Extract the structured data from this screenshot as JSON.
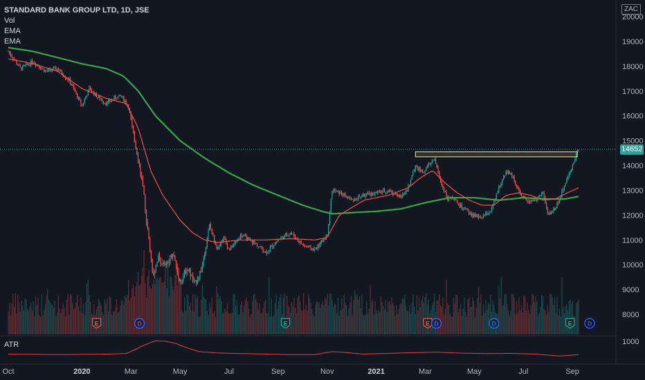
{
  "legend": {
    "title": "STANDARD BANK GROUP LTD, 1D, JSE",
    "vol": "Vol",
    "ema1": "EMA",
    "ema2": "EMA"
  },
  "currency": "ZAC",
  "last_price_label": "14652",
  "atr_label": "ATR",
  "colors": {
    "background": "#131722",
    "up": "#26a69a",
    "down": "#ef5350",
    "ema_fast": "#f05348",
    "ema_slow": "#3aa548",
    "atr": "#e84040",
    "earnings": "#ef5350",
    "dividend": "#2962ff"
  },
  "chart_data": {
    "type": "candlestick",
    "x_ticks": [
      {
        "label": "Oct",
        "bold": false,
        "t": 0.0
      },
      {
        "label": "2020",
        "bold": true,
        "t": 3.0
      },
      {
        "label": "Mar",
        "bold": false,
        "t": 5.0
      },
      {
        "label": "May",
        "bold": false,
        "t": 7.0
      },
      {
        "label": "Jul",
        "bold": false,
        "t": 9.0
      },
      {
        "label": "Sep",
        "bold": false,
        "t": 11.0
      },
      {
        "label": "Nov",
        "bold": false,
        "t": 13.0
      },
      {
        "label": "2021",
        "bold": true,
        "t": 15.0
      },
      {
        "label": "Mar",
        "bold": false,
        "t": 17.0
      },
      {
        "label": "May",
        "bold": false,
        "t": 19.0
      },
      {
        "label": "Jul",
        "bold": false,
        "t": 21.0
      },
      {
        "label": "Sep",
        "bold": false,
        "t": 23.0
      }
    ],
    "price_axis": {
      "ylim": [
        7600,
        20400
      ],
      "ticks": [
        8000,
        9000,
        10000,
        11000,
        12000,
        13000,
        14000,
        15000,
        16000,
        17000,
        18000,
        19000,
        20000
      ]
    },
    "atr_axis": {
      "ticks": [
        1000
      ]
    },
    "last_price": 14652,
    "resistance_box": {
      "t_start": 16.6,
      "t_end": 23.2,
      "y_low": 14350,
      "y_high": 14550
    },
    "price_path": [
      [
        0.0,
        18600
      ],
      [
        0.5,
        17900
      ],
      [
        1.0,
        18200
      ],
      [
        1.5,
        17800
      ],
      [
        2.0,
        17900
      ],
      [
        2.5,
        17400
      ],
      [
        3.0,
        16400
      ],
      [
        3.3,
        17100
      ],
      [
        3.7,
        16700
      ],
      [
        4.0,
        16500
      ],
      [
        4.3,
        16700
      ],
      [
        4.6,
        16800
      ],
      [
        4.9,
        16400
      ],
      [
        5.1,
        15200
      ],
      [
        5.3,
        14300
      ],
      [
        5.5,
        13000
      ],
      [
        5.7,
        11200
      ],
      [
        5.9,
        9600
      ],
      [
        6.1,
        10300
      ],
      [
        6.4,
        9900
      ],
      [
        6.7,
        10500
      ],
      [
        7.0,
        9300
      ],
      [
        7.3,
        9900
      ],
      [
        7.6,
        9200
      ],
      [
        7.9,
        9900
      ],
      [
        8.2,
        11600
      ],
      [
        8.5,
        10700
      ],
      [
        8.8,
        11100
      ],
      [
        9.0,
        10600
      ],
      [
        9.5,
        11200
      ],
      [
        10.0,
        10900
      ],
      [
        10.5,
        10500
      ],
      [
        11.0,
        11000
      ],
      [
        11.5,
        11300
      ],
      [
        12.0,
        10800
      ],
      [
        12.5,
        10600
      ],
      [
        13.0,
        11200
      ],
      [
        13.2,
        13000
      ],
      [
        13.5,
        12900
      ],
      [
        14.0,
        12600
      ],
      [
        14.5,
        12800
      ],
      [
        15.0,
        12900
      ],
      [
        15.5,
        13000
      ],
      [
        16.0,
        12700
      ],
      [
        16.3,
        13100
      ],
      [
        16.6,
        14000
      ],
      [
        16.9,
        13700
      ],
      [
        17.2,
        14100
      ],
      [
        17.4,
        14200
      ],
      [
        17.6,
        13400
      ],
      [
        17.9,
        12700
      ],
      [
        18.2,
        12600
      ],
      [
        18.5,
        12300
      ],
      [
        18.9,
        12000
      ],
      [
        19.3,
        11900
      ],
      [
        19.7,
        12200
      ],
      [
        20.0,
        13100
      ],
      [
        20.3,
        13800
      ],
      [
        20.6,
        13500
      ],
      [
        20.9,
        12700
      ],
      [
        21.2,
        12600
      ],
      [
        21.5,
        12600
      ],
      [
        21.8,
        12900
      ],
      [
        22.0,
        12000
      ],
      [
        22.3,
        12300
      ],
      [
        22.5,
        12700
      ],
      [
        22.7,
        13300
      ],
      [
        22.9,
        13700
      ],
      [
        23.1,
        14300
      ],
      [
        23.25,
        14652
      ]
    ],
    "ema_fast_path": [
      [
        0.0,
        18300
      ],
      [
        1.0,
        18100
      ],
      [
        2.0,
        17800
      ],
      [
        3.0,
        17100
      ],
      [
        4.0,
        16700
      ],
      [
        4.8,
        16500
      ],
      [
        5.3,
        15500
      ],
      [
        5.8,
        13800
      ],
      [
        6.3,
        12800
      ],
      [
        7.0,
        11800
      ],
      [
        7.5,
        11300
      ],
      [
        8.0,
        11000
      ],
      [
        8.5,
        10900
      ],
      [
        9.5,
        11000
      ],
      [
        10.5,
        11000
      ],
      [
        11.5,
        11050
      ],
      [
        12.5,
        11000
      ],
      [
        13.0,
        11100
      ],
      [
        13.5,
        12000
      ],
      [
        14.5,
        12600
      ],
      [
        15.5,
        12800
      ],
      [
        16.3,
        13100
      ],
      [
        16.8,
        13500
      ],
      [
        17.3,
        13800
      ],
      [
        17.8,
        13300
      ],
      [
        18.3,
        12900
      ],
      [
        18.8,
        12600
      ],
      [
        19.3,
        12400
      ],
      [
        19.8,
        12400
      ],
      [
        20.3,
        12800
      ],
      [
        20.8,
        12900
      ],
      [
        21.3,
        12800
      ],
      [
        21.8,
        12600
      ],
      [
        22.3,
        12650
      ],
      [
        22.8,
        12900
      ],
      [
        23.25,
        13100
      ]
    ],
    "ema_slow_path": [
      [
        0.0,
        18750
      ],
      [
        1.0,
        18600
      ],
      [
        2.0,
        18350
      ],
      [
        3.0,
        18100
      ],
      [
        4.0,
        17900
      ],
      [
        4.7,
        17600
      ],
      [
        5.3,
        17000
      ],
      [
        6.0,
        16000
      ],
      [
        7.0,
        15000
      ],
      [
        8.0,
        14300
      ],
      [
        9.0,
        13700
      ],
      [
        10.0,
        13200
      ],
      [
        11.0,
        12800
      ],
      [
        12.0,
        12400
      ],
      [
        12.8,
        12150
      ],
      [
        13.2,
        12050
      ],
      [
        14.0,
        12100
      ],
      [
        15.0,
        12150
      ],
      [
        16.0,
        12250
      ],
      [
        17.0,
        12500
      ],
      [
        18.0,
        12700
      ],
      [
        19.0,
        12700
      ],
      [
        20.0,
        12600
      ],
      [
        21.0,
        12700
      ],
      [
        22.0,
        12650
      ],
      [
        22.7,
        12650
      ],
      [
        23.25,
        12750
      ]
    ],
    "atr_path": [
      [
        0.0,
        0.3
      ],
      [
        2.0,
        0.28
      ],
      [
        4.0,
        0.3
      ],
      [
        4.8,
        0.32
      ],
      [
        5.2,
        0.5
      ],
      [
        5.6,
        0.7
      ],
      [
        6.0,
        0.85
      ],
      [
        6.4,
        0.83
      ],
      [
        6.8,
        0.75
      ],
      [
        7.3,
        0.55
      ],
      [
        7.8,
        0.4
      ],
      [
        8.5,
        0.35
      ],
      [
        9.5,
        0.32
      ],
      [
        10.5,
        0.3
      ],
      [
        11.5,
        0.28
      ],
      [
        12.5,
        0.28
      ],
      [
        13.2,
        0.4
      ],
      [
        13.6,
        0.38
      ],
      [
        14.5,
        0.3
      ],
      [
        15.5,
        0.33
      ],
      [
        16.5,
        0.36
      ],
      [
        17.5,
        0.38
      ],
      [
        18.5,
        0.34
      ],
      [
        19.5,
        0.32
      ],
      [
        20.5,
        0.33
      ],
      [
        21.5,
        0.3
      ],
      [
        22.0,
        0.26
      ],
      [
        22.5,
        0.22
      ],
      [
        23.25,
        0.28
      ]
    ],
    "events": [
      {
        "type": "E",
        "t": 3.6,
        "color": "#ef5350"
      },
      {
        "type": "D",
        "t": 5.35,
        "color": "#2962ff"
      },
      {
        "type": "E",
        "t": 11.3,
        "color": "#26a69a"
      },
      {
        "type": "E",
        "t": 17.1,
        "color": "#ef5350"
      },
      {
        "type": "D",
        "t": 17.45,
        "color": "#2962ff"
      },
      {
        "type": "D",
        "t": 19.8,
        "color": "#2962ff"
      },
      {
        "type": "E",
        "t": 22.9,
        "color": "#26a69a"
      },
      {
        "type": "D",
        "t": 23.7,
        "color": "#2962ff"
      }
    ]
  }
}
